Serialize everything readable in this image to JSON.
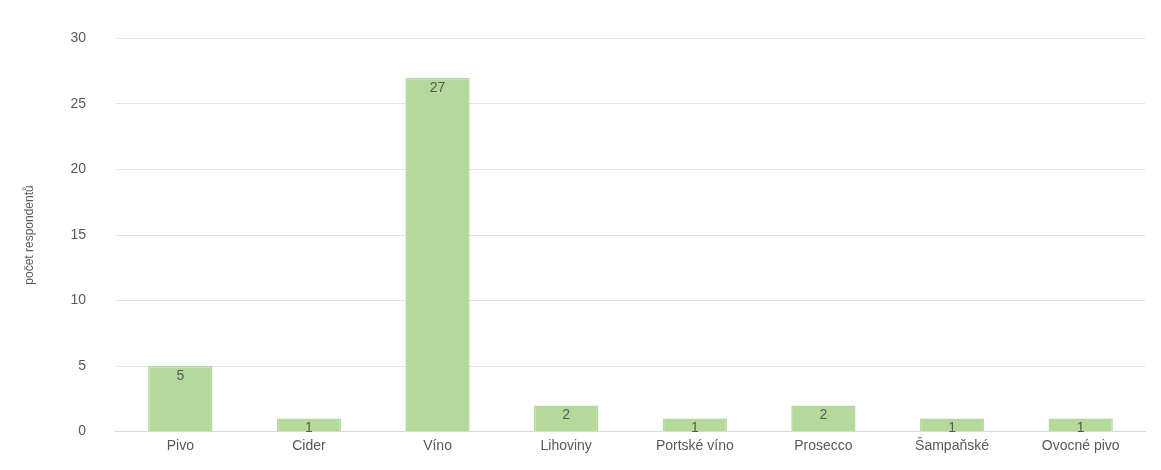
{
  "chart_data": {
    "type": "bar",
    "ylabel": "počet respondentů",
    "categories": [
      "Pivo",
      "Cider",
      "Víno",
      "Lihoviny",
      "Portské víno",
      "Prosecco",
      "Šampaňské",
      "Ovocné pivo"
    ],
    "values": [
      5,
      1,
      27,
      2,
      1,
      2,
      1,
      1
    ],
    "color": "#b4d99a",
    "ylim": [
      0,
      30
    ],
    "yticks": [
      0,
      5,
      10,
      15,
      20,
      25,
      30
    ],
    "grid": "y",
    "data_labels": true,
    "legend": false
  }
}
